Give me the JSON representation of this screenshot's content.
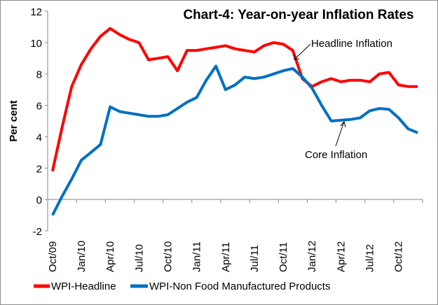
{
  "chart_data": {
    "type": "line",
    "title": "Chart-4: Year-on-year Inflation Rates",
    "xlabel": "",
    "ylabel": "Per cent",
    "ylim": [
      -2,
      12
    ],
    "yticks": [
      -2,
      0,
      2,
      4,
      6,
      8,
      10,
      12
    ],
    "x": [
      "Oct/09",
      "Nov/09",
      "Dec/09",
      "Jan/10",
      "Feb/10",
      "Mar/10",
      "Apr/10",
      "May/10",
      "Jun/10",
      "Jul/10",
      "Aug/10",
      "Sep/10",
      "Oct/10",
      "Nov/10",
      "Dec/10",
      "Jan/11",
      "Feb/11",
      "Mar/11",
      "Apr/11",
      "May/11",
      "Jun/11",
      "Jul/11",
      "Aug/11",
      "Sep/11",
      "Oct/11",
      "Nov/11",
      "Dec/11",
      "Jan/12",
      "Feb/12",
      "Mar/12",
      "Apr/12",
      "May/12",
      "Jun/12",
      "Jul/12",
      "Aug/12",
      "Sep/12",
      "Oct/12",
      "Nov/12",
      "Dec/12"
    ],
    "xtick_labels": [
      "Oct/09",
      "Jan/10",
      "Apr/10",
      "Jul/10",
      "Oct/10",
      "Jan/11",
      "Apr/11",
      "Jul/11",
      "Oct/11",
      "Jan/12",
      "Apr/12",
      "Jul/12",
      "Oct/12"
    ],
    "series": [
      {
        "name": "WPI-Headline",
        "color": "#ff0000",
        "values": [
          1.8,
          4.6,
          7.2,
          8.6,
          9.6,
          10.4,
          10.9,
          10.5,
          10.2,
          10.0,
          8.9,
          9.0,
          9.1,
          8.2,
          9.5,
          9.5,
          9.6,
          9.7,
          9.8,
          9.6,
          9.5,
          9.4,
          9.8,
          10.0,
          9.9,
          9.5,
          7.7,
          7.2,
          7.5,
          7.7,
          7.5,
          7.6,
          7.6,
          7.5,
          8.0,
          8.1,
          7.3,
          7.2,
          7.2
        ]
      },
      {
        "name": "WPI-Non Food Manufactured Products",
        "color": "#0070c0",
        "values": [
          -1.0,
          0.2,
          1.3,
          2.5,
          3.0,
          3.5,
          5.9,
          5.6,
          5.5,
          5.4,
          5.3,
          5.3,
          5.4,
          5.8,
          6.2,
          6.5,
          7.6,
          8.5,
          7.0,
          7.3,
          7.8,
          7.7,
          7.8,
          8.0,
          8.2,
          8.35,
          7.8,
          7.1,
          6.0,
          5.0,
          5.05,
          5.1,
          5.2,
          5.65,
          5.8,
          5.75,
          5.2,
          4.5,
          4.25
        ]
      }
    ],
    "annotations": [
      "Headline Inflation",
      "Core Inflation"
    ],
    "legend": "bottom",
    "grid": false
  }
}
